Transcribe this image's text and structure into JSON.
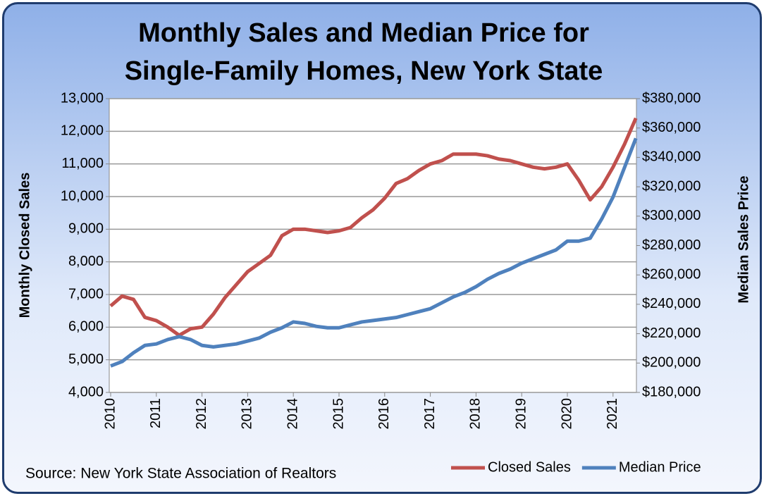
{
  "chart_data": {
    "type": "line",
    "title": "Monthly Sales and Median Price for Single-Family Homes, New York State",
    "y_label": "Monthly Closed Sales",
    "y2_label": "Median Sales Price",
    "source": "Source: New York State Association of Realtors",
    "categories": [
      "2010",
      null,
      null,
      null,
      "2011",
      null,
      null,
      null,
      "2012",
      null,
      null,
      null,
      "2013",
      null,
      null,
      null,
      "2014",
      null,
      null,
      null,
      "2015",
      null,
      null,
      null,
      "2016",
      null,
      null,
      null,
      "2017",
      null,
      null,
      null,
      "2018",
      null,
      null,
      null,
      "2019",
      null,
      null,
      null,
      "2020",
      null,
      null,
      null,
      "2021",
      null,
      null
    ],
    "series": [
      {
        "name": "Closed Sales",
        "color": "#c0504d",
        "values": [
          6650,
          6950,
          6850,
          6300,
          6200,
          6000,
          5750,
          5950,
          6000,
          6400,
          6900,
          7300,
          7700,
          7950,
          8200,
          8800,
          9000,
          9000,
          8950,
          8900,
          8950,
          9050,
          9350,
          9600,
          9950,
          10400,
          10550,
          10800,
          11000,
          11100,
          11300,
          11300,
          11300,
          11250,
          11150,
          11100,
          11000,
          10900,
          10850,
          10900,
          11000,
          10500,
          9900,
          10300,
          10900,
          11600,
          12400
        ]
      },
      {
        "name": "Median Price",
        "color": "#4f81bd",
        "axis": "y2",
        "values": [
          198000,
          201000,
          207000,
          212000,
          213000,
          216000,
          218000,
          216000,
          212000,
          211000,
          212000,
          213000,
          215000,
          217000,
          221000,
          224000,
          228000,
          227000,
          225000,
          224000,
          224000,
          226000,
          228000,
          229000,
          230000,
          231000,
          233000,
          235000,
          237000,
          241000,
          245000,
          248000,
          252000,
          257000,
          261000,
          264000,
          268000,
          271000,
          274000,
          277000,
          283000,
          283000,
          285000,
          298000,
          313000,
          333000,
          353000
        ]
      }
    ],
    "ylim": [
      4000,
      13000
    ],
    "yticks": [
      {
        "value": 4000,
        "label": "4,000"
      },
      {
        "value": 5000,
        "label": "5,000"
      },
      {
        "value": 6000,
        "label": "6,000"
      },
      {
        "value": 7000,
        "label": "7,000"
      },
      {
        "value": 8000,
        "label": "8,000"
      },
      {
        "value": 9000,
        "label": "9,000"
      },
      {
        "value": 10000,
        "label": "10,000"
      },
      {
        "value": 11000,
        "label": "11,000"
      },
      {
        "value": 12000,
        "label": "12,000"
      },
      {
        "value": 13000,
        "label": "13,000"
      }
    ],
    "y2lim": [
      180000,
      380000
    ],
    "y2ticks": [
      {
        "value": 180000,
        "label": "$180,000"
      },
      {
        "value": 200000,
        "label": "$200,000"
      },
      {
        "value": 220000,
        "label": "$220,000"
      },
      {
        "value": 240000,
        "label": "$240,000"
      },
      {
        "value": 260000,
        "label": "$260,000"
      },
      {
        "value": 280000,
        "label": "$280,000"
      },
      {
        "value": 300000,
        "label": "$300,000"
      },
      {
        "value": 320000,
        "label": "$320,000"
      },
      {
        "value": 340000,
        "label": "$340,000"
      },
      {
        "value": 360000,
        "label": "$360,000"
      },
      {
        "value": 380000,
        "label": "$380,000"
      }
    ],
    "grid": true,
    "legend": "bottom-right"
  }
}
